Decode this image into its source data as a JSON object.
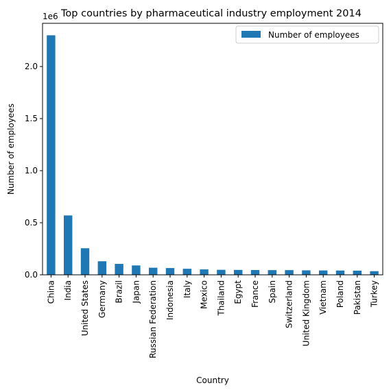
{
  "chart_data": {
    "type": "bar",
    "title": "Top countries by pharmaceutical industry employment 2014",
    "xlabel": "Country",
    "ylabel": "Number of employees",
    "scale_label": "1e6",
    "ylim": [
      0,
      2.415
    ],
    "yticks": [
      0.0,
      0.5,
      1.0,
      1.5,
      2.0
    ],
    "ytick_labels": [
      "0.0",
      "0.5",
      "1.0",
      "1.5",
      "2.0"
    ],
    "legend_position": "top-right",
    "grid": false,
    "bar_color": "#1f77b4",
    "series": [
      {
        "name": "Number of employees",
        "values": [
          2.3,
          0.57,
          0.255,
          0.13,
          0.105,
          0.09,
          0.068,
          0.065,
          0.058,
          0.052,
          0.048,
          0.047,
          0.046,
          0.045,
          0.045,
          0.043,
          0.042,
          0.041,
          0.04,
          0.035
        ]
      }
    ],
    "categories": [
      "China",
      "India",
      "United States",
      "Germany",
      "Brazil",
      "Japan",
      "Russian Federation",
      "Indonesia",
      "Italy",
      "Mexico",
      "Thailand",
      "Egypt",
      "France",
      "Spain",
      "Switzerland",
      "United Kingdom",
      "Vietnam",
      "Poland",
      "Pakistan",
      "Turkey"
    ]
  }
}
